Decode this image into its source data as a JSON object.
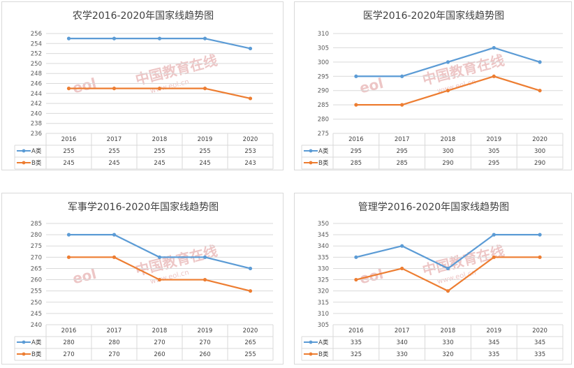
{
  "chart_data": [
    {
      "type": "line",
      "title": "农学2016-2020年国家线趋势图",
      "categories": [
        "2016",
        "2017",
        "2018",
        "2019",
        "2020"
      ],
      "ylim": [
        236,
        256
      ],
      "ytick_step": 2,
      "grid": true,
      "legend_placement": "data-table",
      "series": [
        {
          "name": "A类",
          "values": [
            255,
            255,
            255,
            255,
            253
          ],
          "color": "#5b9bd5"
        },
        {
          "name": "B类",
          "values": [
            245,
            245,
            245,
            245,
            243
          ],
          "color": "#ed7d31"
        }
      ]
    },
    {
      "type": "line",
      "title": "医学2016-2020年国家线趋势图",
      "categories": [
        "2016",
        "2017",
        "2018",
        "2019",
        "2020"
      ],
      "ylim": [
        275,
        310
      ],
      "ytick_step": 5,
      "grid": true,
      "legend_placement": "data-table",
      "series": [
        {
          "name": "A类",
          "values": [
            295,
            295,
            300,
            305,
            300
          ],
          "color": "#5b9bd5"
        },
        {
          "name": "B类",
          "values": [
            285,
            285,
            290,
            295,
            290
          ],
          "color": "#ed7d31"
        }
      ]
    },
    {
      "type": "line",
      "title": "军事学2016-2020年国家线趋势图",
      "categories": [
        "2016",
        "2017",
        "2018",
        "2019",
        "2020"
      ],
      "ylim": [
        240,
        285
      ],
      "ytick_step": 5,
      "grid": true,
      "legend_placement": "data-table",
      "series": [
        {
          "name": "A类",
          "values": [
            280,
            280,
            270,
            270,
            265
          ],
          "color": "#5b9bd5"
        },
        {
          "name": "B类",
          "values": [
            270,
            270,
            260,
            260,
            255
          ],
          "color": "#ed7d31"
        }
      ]
    },
    {
      "type": "line",
      "title": "管理学2016-2020年国家线趋势图",
      "categories": [
        "2016",
        "2017",
        "2018",
        "2019",
        "2020"
      ],
      "ylim": [
        305,
        350
      ],
      "ytick_step": 5,
      "grid": true,
      "legend_placement": "data-table",
      "series": [
        {
          "name": "A类",
          "values": [
            335,
            340,
            330,
            345,
            345
          ],
          "color": "#5b9bd5"
        },
        {
          "name": "B类",
          "values": [
            325,
            330,
            320,
            335,
            335
          ],
          "color": "#ed7d31"
        }
      ]
    }
  ],
  "watermark": {
    "logo": "eol",
    "text": "中国教育在线",
    "url": "www.eol.cn"
  }
}
